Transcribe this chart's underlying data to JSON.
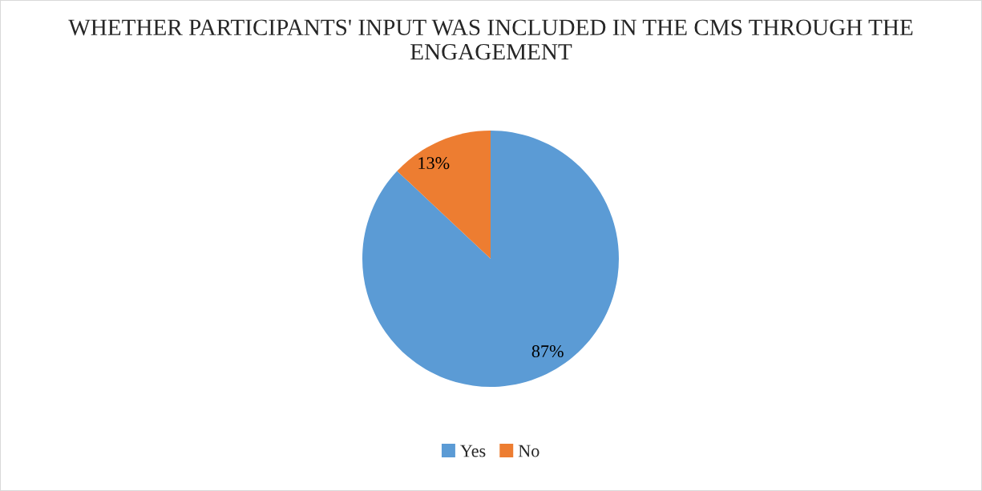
{
  "chart_data": {
    "type": "pie",
    "title": "WHETHER PARTICIPANTS' INPUT WAS INCLUDED IN THE CMS THROUGH THE ENGAGEMENT",
    "categories": [
      "Yes",
      "No"
    ],
    "values": [
      87,
      13
    ],
    "colors": [
      "#5b9bd5",
      "#ed7d31"
    ],
    "value_labels": [
      "87%",
      "13%"
    ],
    "legend": "bottom"
  }
}
